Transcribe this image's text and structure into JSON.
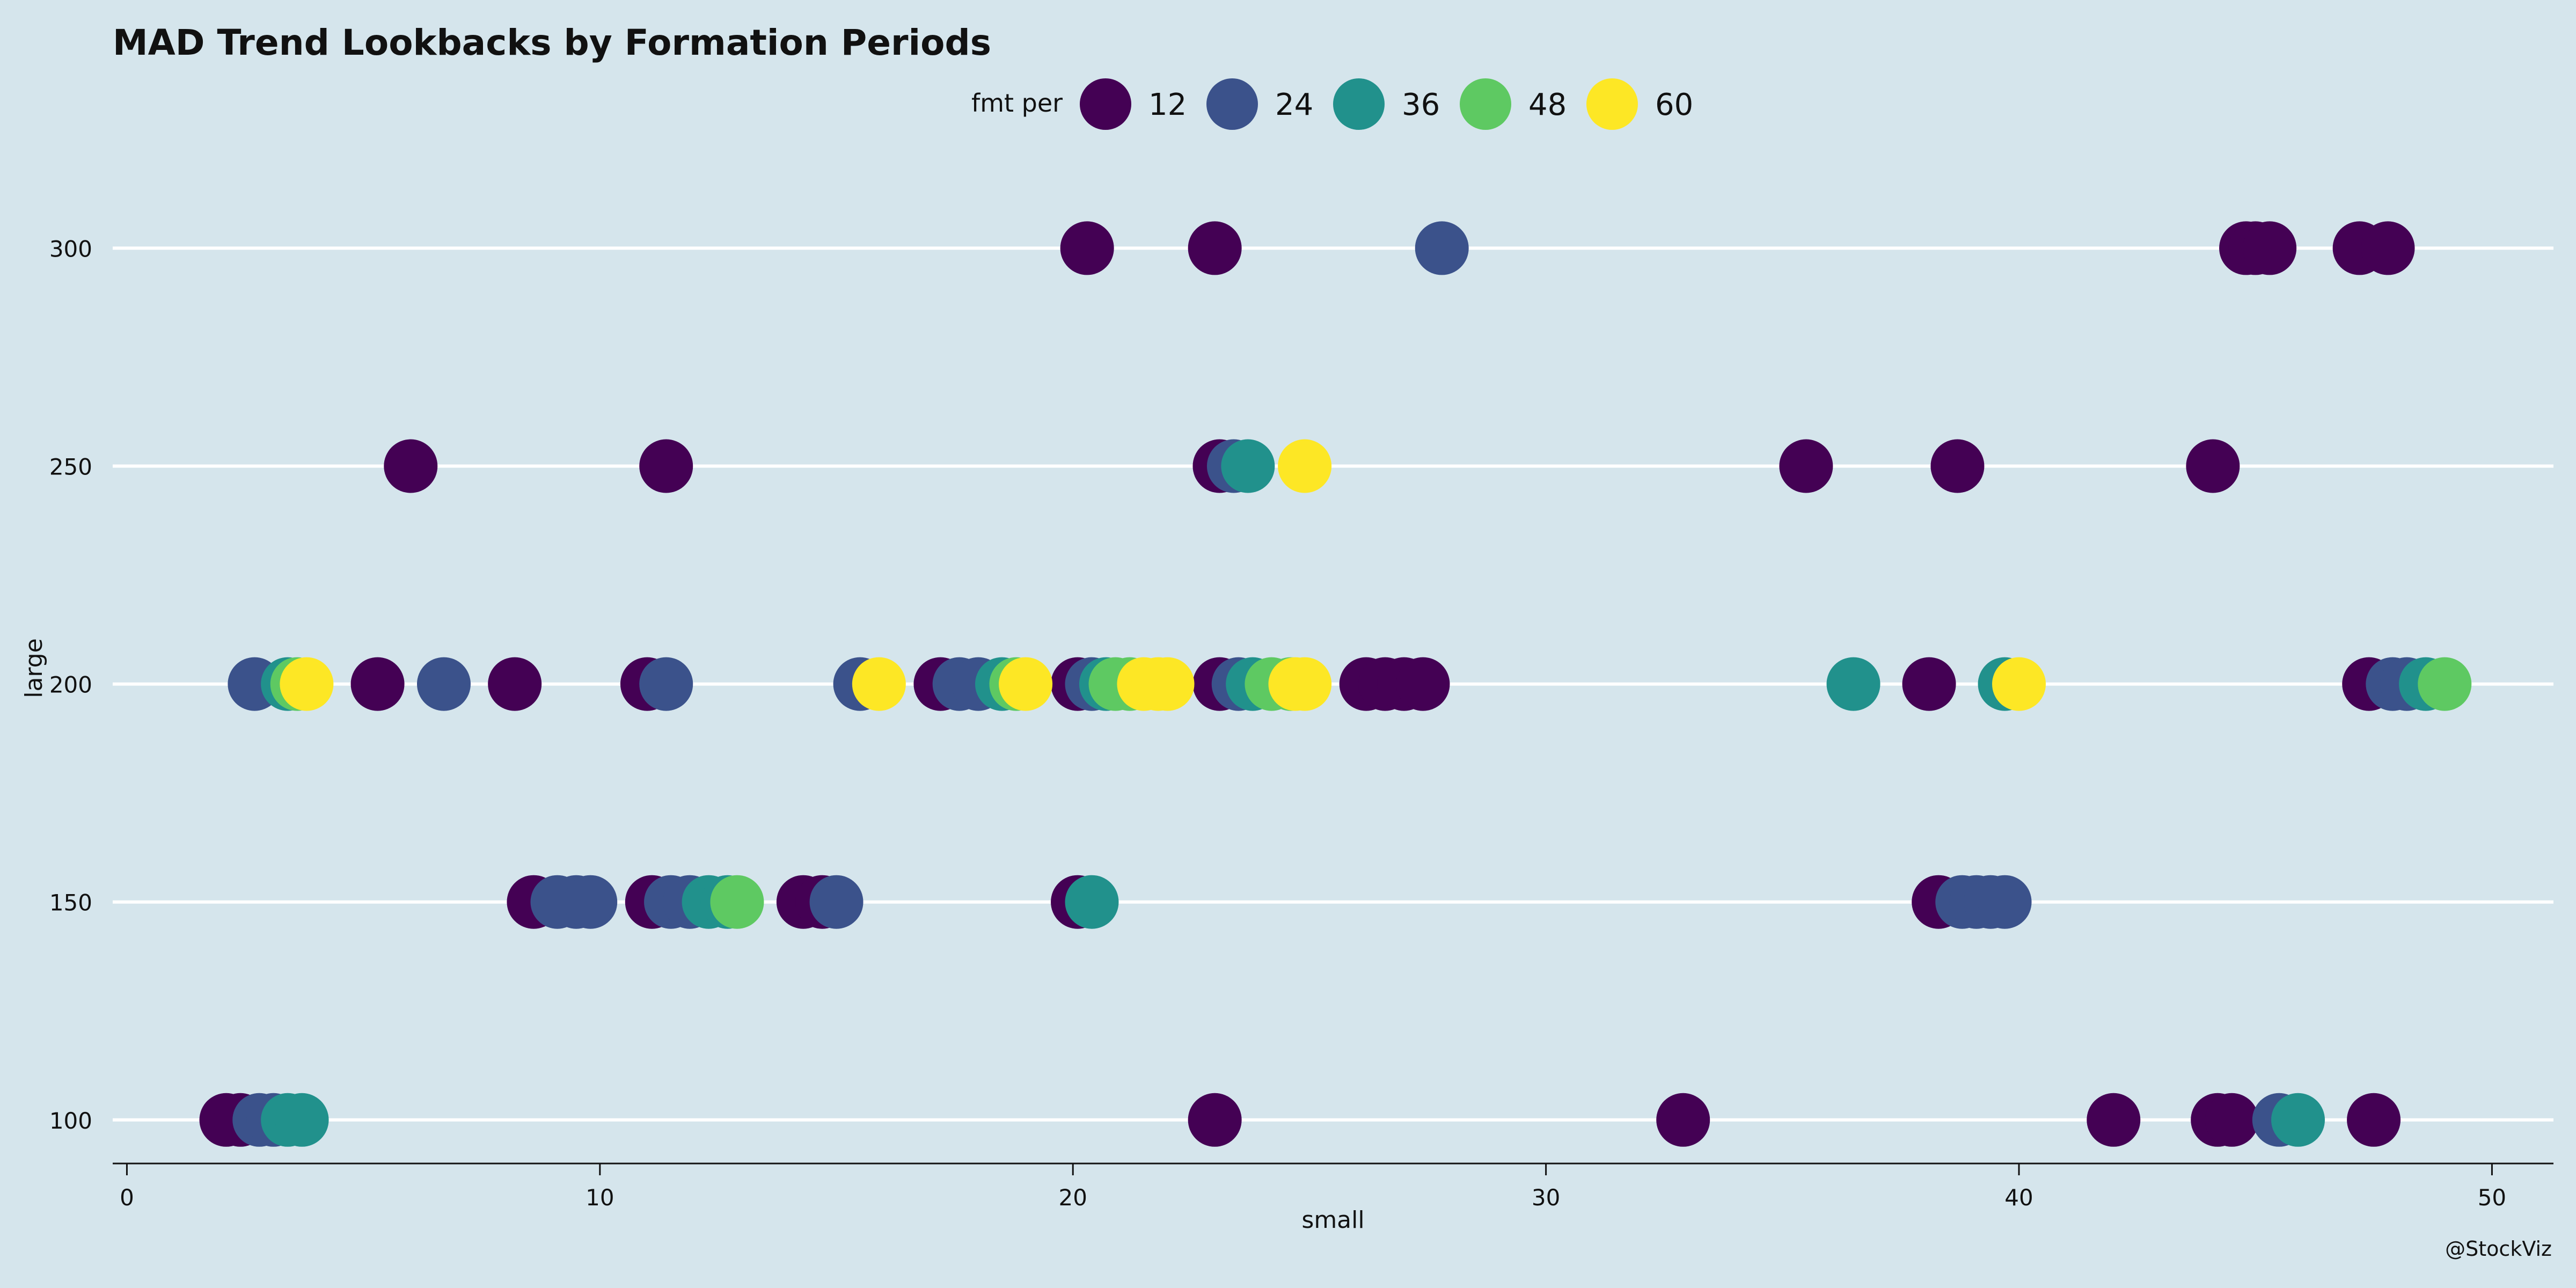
{
  "chart_data": {
    "type": "scatter",
    "title": "MAD Trend Lookbacks by Formation Periods",
    "xlabel": "small",
    "ylabel": "large",
    "credit": "@StockViz",
    "xlim": [
      -0.3,
      51.3
    ],
    "ylim": [
      90,
      320
    ],
    "x_ticks": [
      0,
      10,
      20,
      30,
      40,
      50
    ],
    "y_ticks": [
      100,
      150,
      200,
      250,
      300
    ],
    "grid": "horizontal",
    "legend": {
      "title": "fmt per",
      "placement": "top-center"
    },
    "series": [
      {
        "name": "12",
        "color": "#440154",
        "points": [
          {
            "x": 20.3,
            "y": 300
          },
          {
            "x": 23.0,
            "y": 300
          },
          {
            "x": 44.8,
            "y": 300
          },
          {
            "x": 45.0,
            "y": 300
          },
          {
            "x": 45.3,
            "y": 300
          },
          {
            "x": 47.2,
            "y": 300
          },
          {
            "x": 47.8,
            "y": 300
          },
          {
            "x": 6.0,
            "y": 250
          },
          {
            "x": 11.4,
            "y": 250
          },
          {
            "x": 23.1,
            "y": 250
          },
          {
            "x": 35.5,
            "y": 250
          },
          {
            "x": 38.7,
            "y": 250
          },
          {
            "x": 44.1,
            "y": 250
          },
          {
            "x": 5.3,
            "y": 200
          },
          {
            "x": 8.2,
            "y": 200
          },
          {
            "x": 11.0,
            "y": 200
          },
          {
            "x": 17.2,
            "y": 200
          },
          {
            "x": 20.1,
            "y": 200
          },
          {
            "x": 23.1,
            "y": 200
          },
          {
            "x": 26.2,
            "y": 200
          },
          {
            "x": 26.6,
            "y": 200
          },
          {
            "x": 27.0,
            "y": 200
          },
          {
            "x": 27.4,
            "y": 200
          },
          {
            "x": 38.1,
            "y": 200
          },
          {
            "x": 47.4,
            "y": 200
          },
          {
            "x": 8.6,
            "y": 150
          },
          {
            "x": 11.1,
            "y": 150
          },
          {
            "x": 14.3,
            "y": 150
          },
          {
            "x": 14.7,
            "y": 150
          },
          {
            "x": 20.1,
            "y": 150
          },
          {
            "x": 38.3,
            "y": 150
          },
          {
            "x": 2.1,
            "y": 100
          },
          {
            "x": 2.4,
            "y": 100
          },
          {
            "x": 23.0,
            "y": 100
          },
          {
            "x": 32.9,
            "y": 100
          },
          {
            "x": 42.0,
            "y": 100
          },
          {
            "x": 44.2,
            "y": 100
          },
          {
            "x": 44.5,
            "y": 100
          },
          {
            "x": 47.5,
            "y": 100
          }
        ]
      },
      {
        "name": "24",
        "color": "#3b528b",
        "points": [
          {
            "x": 27.8,
            "y": 300
          },
          {
            "x": 23.4,
            "y": 250
          },
          {
            "x": 2.7,
            "y": 200
          },
          {
            "x": 6.7,
            "y": 200
          },
          {
            "x": 11.4,
            "y": 200
          },
          {
            "x": 15.5,
            "y": 200
          },
          {
            "x": 17.6,
            "y": 200
          },
          {
            "x": 18.0,
            "y": 200
          },
          {
            "x": 20.4,
            "y": 200
          },
          {
            "x": 23.5,
            "y": 200
          },
          {
            "x": 47.9,
            "y": 200
          },
          {
            "x": 48.2,
            "y": 200
          },
          {
            "x": 9.1,
            "y": 150
          },
          {
            "x": 9.5,
            "y": 150
          },
          {
            "x": 9.8,
            "y": 150
          },
          {
            "x": 11.5,
            "y": 150
          },
          {
            "x": 11.9,
            "y": 150
          },
          {
            "x": 15.0,
            "y": 150
          },
          {
            "x": 38.8,
            "y": 150
          },
          {
            "x": 39.1,
            "y": 150
          },
          {
            "x": 39.4,
            "y": 150
          },
          {
            "x": 39.7,
            "y": 150
          },
          {
            "x": 2.8,
            "y": 100
          },
          {
            "x": 3.1,
            "y": 100
          },
          {
            "x": 45.5,
            "y": 100
          }
        ]
      },
      {
        "name": "36",
        "color": "#21918c",
        "points": [
          {
            "x": 23.7,
            "y": 250
          },
          {
            "x": 3.4,
            "y": 200
          },
          {
            "x": 18.5,
            "y": 200
          },
          {
            "x": 20.7,
            "y": 200
          },
          {
            "x": 23.8,
            "y": 200
          },
          {
            "x": 36.5,
            "y": 200
          },
          {
            "x": 39.7,
            "y": 200
          },
          {
            "x": 48.6,
            "y": 200
          },
          {
            "x": 12.3,
            "y": 150
          },
          {
            "x": 12.7,
            "y": 150
          },
          {
            "x": 20.4,
            "y": 150
          },
          {
            "x": 3.4,
            "y": 100
          },
          {
            "x": 3.7,
            "y": 100
          },
          {
            "x": 45.9,
            "y": 100
          }
        ]
      },
      {
        "name": "48",
        "color": "#5ec962",
        "points": [
          {
            "x": 3.6,
            "y": 200
          },
          {
            "x": 18.8,
            "y": 200
          },
          {
            "x": 20.9,
            "y": 200
          },
          {
            "x": 21.2,
            "y": 200
          },
          {
            "x": 24.2,
            "y": 200
          },
          {
            "x": 24.6,
            "y": 200
          },
          {
            "x": 49.0,
            "y": 200
          },
          {
            "x": 12.9,
            "y": 150
          }
        ]
      },
      {
        "name": "60",
        "color": "#fde725",
        "points": [
          {
            "x": 24.9,
            "y": 250
          },
          {
            "x": 3.8,
            "y": 200
          },
          {
            "x": 15.9,
            "y": 200
          },
          {
            "x": 19.0,
            "y": 200
          },
          {
            "x": 21.5,
            "y": 200
          },
          {
            "x": 21.8,
            "y": 200
          },
          {
            "x": 22.0,
            "y": 200
          },
          {
            "x": 24.7,
            "y": 200
          },
          {
            "x": 24.9,
            "y": 200
          },
          {
            "x": 40.0,
            "y": 200
          }
        ]
      }
    ]
  }
}
